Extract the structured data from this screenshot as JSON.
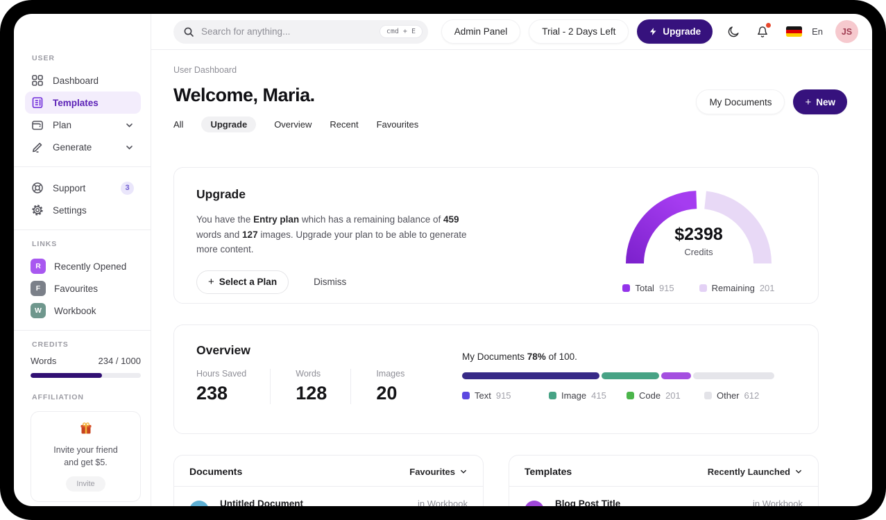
{
  "colors": {
    "accent": "#36127d",
    "sidebar_active_text": "#5b21b6",
    "sidebar_active_bg": "#f3edfc",
    "gauge_total": "#9333ea",
    "gauge_remaining": "#e8d9f6",
    "notification_dot": "#e7472c"
  },
  "sidebar": {
    "user_label": "USER",
    "nav": [
      {
        "label": "Dashboard"
      },
      {
        "label": "Templates",
        "active": true
      },
      {
        "label": "Plan",
        "expandable": true
      },
      {
        "label": "Generate",
        "expandable": true
      },
      {
        "label": "Support",
        "badge": "3"
      },
      {
        "label": "Settings"
      }
    ],
    "links_label": "LINKS",
    "links": [
      {
        "initial": "R",
        "label": "Recently Opened",
        "color": "#a858f0"
      },
      {
        "initial": "F",
        "label": "Favourites",
        "color": "#7b8089"
      },
      {
        "initial": "W",
        "label": "Workbook",
        "color": "#6f978d"
      }
    ],
    "credits_label": "CREDITS",
    "credits": {
      "label": "Words",
      "value": "234 / 1000",
      "percent": 65
    },
    "affiliation_label": "AFFILIATION",
    "affiliation": {
      "text_line1": "Invite your friend",
      "text_line2": "and get $5.",
      "button": "Invite"
    }
  },
  "topbar": {
    "search_placeholder": "Search for anything...",
    "search_shortcut": "cmd + E",
    "admin_button": "Admin Panel",
    "trial_button": "Trial - 2 Days Left",
    "upgrade_button": "Upgrade",
    "language": "En",
    "avatar_initials": "JS"
  },
  "header": {
    "breadcrumb": "User Dashboard",
    "title": "Welcome, Maria.",
    "my_documents_button": "My Documents",
    "new_button": "New",
    "tabs": [
      {
        "label": "All"
      },
      {
        "label": "Upgrade",
        "active": true
      },
      {
        "label": "Overview"
      },
      {
        "label": "Recent"
      },
      {
        "label": "Favourites"
      }
    ]
  },
  "upgrade_card": {
    "title": "Upgrade",
    "para_parts": [
      "You have the ",
      "Entry plan",
      " which has a remaining balance of ",
      "459",
      " words and ",
      "127",
      " images. Upgrade your plan to be able to generate more content."
    ],
    "select_plan_button": "Select a Plan",
    "dismiss_button": "Dismiss",
    "gauge_value": "$2398",
    "gauge_label": "Credits",
    "legend": [
      {
        "name": "Total",
        "value": "915",
        "color": "#9333ea"
      },
      {
        "name": "Remaining",
        "value": "201",
        "color": "#e3d1f5"
      }
    ]
  },
  "overview_card": {
    "title": "Overview",
    "stats": [
      {
        "label": "Hours Saved",
        "value": "238"
      },
      {
        "label": "Words",
        "value": "128"
      },
      {
        "label": "Images",
        "value": "20"
      }
    ],
    "docs_line_parts": [
      "My Documents ",
      "78%",
      " of 100."
    ]
  },
  "documents_card": {
    "title": "Documents",
    "filter": "Favourites",
    "row": {
      "title": "Untitled Document",
      "meta": "in Workbook",
      "avatar_color": "#5fb0d4"
    }
  },
  "templates_card": {
    "title": "Templates",
    "filter": "Recently Launched",
    "row": {
      "title": "Blog Post Title",
      "meta": "in Workbook",
      "avatar_color": "#9f46d8"
    }
  },
  "chart_data": [
    {
      "type": "donut-gauge",
      "title": "Credits",
      "center_value": "$2398",
      "center_label": "Credits",
      "series": [
        {
          "name": "Total",
          "value": 915,
          "color": "#9333ea",
          "swatch": "#9333ea"
        },
        {
          "name": "Remaining",
          "value": 201,
          "color": "#e8d9f6",
          "swatch": "#e3d1f5"
        }
      ],
      "legend_position": "bottom"
    },
    {
      "type": "stacked-bar",
      "title": "My Documents 78% of 100.",
      "percent": 78,
      "total": 100,
      "segments": [
        {
          "name": "Text",
          "value": 915,
          "percent": 44,
          "color": "#372a87",
          "swatch": "#5b47e0"
        },
        {
          "name": "Image",
          "value": 415,
          "percent": 18.5,
          "color": "#47a385",
          "swatch": "#47a385"
        },
        {
          "name": "Code",
          "value": 201,
          "percent": 9.5,
          "color": "#a44fe0",
          "swatch": "#4bb54b"
        },
        {
          "name": "Other",
          "value": 612,
          "percent": 26,
          "color": "#e5e5ea",
          "swatch": "#e3e3e8"
        }
      ],
      "legend_position": "bottom"
    }
  ]
}
